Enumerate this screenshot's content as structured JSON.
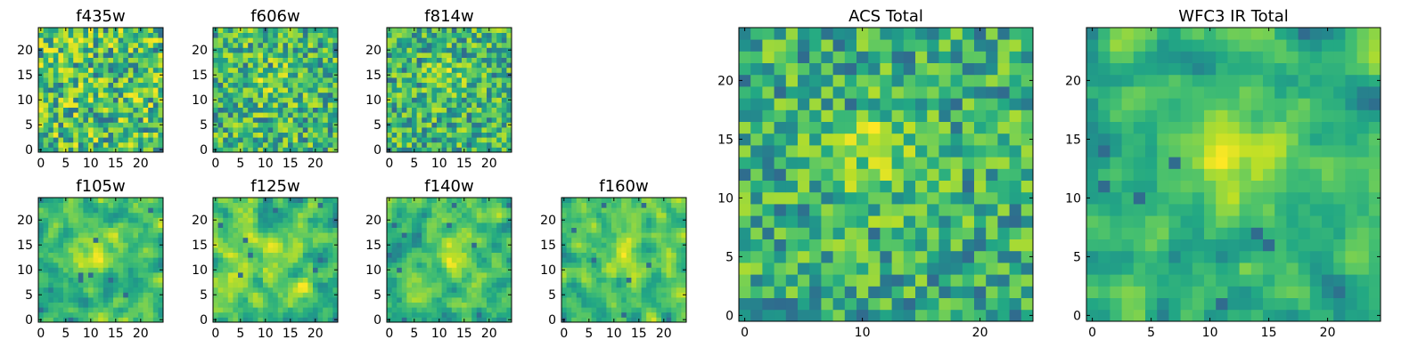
{
  "chart_data": [
    {
      "type": "heatmap",
      "title": "f435w",
      "grid_size": 25,
      "colormap": "viridis",
      "xticks": [
        0,
        5,
        10,
        15,
        20
      ],
      "yticks": [
        0,
        5,
        10,
        15,
        20
      ],
      "xlim": [
        -0.5,
        24.5
      ],
      "ylim": [
        -0.5,
        24.5
      ],
      "pattern": "noise",
      "seed": 11,
      "peak": [
        12,
        12,
        0.0
      ]
    },
    {
      "type": "heatmap",
      "title": "f606w",
      "grid_size": 25,
      "colormap": "viridis",
      "xticks": [
        0,
        5,
        10,
        15,
        20
      ],
      "yticks": [
        0,
        5,
        10,
        15,
        20
      ],
      "xlim": [
        -0.5,
        24.5
      ],
      "ylim": [
        -0.5,
        24.5
      ],
      "pattern": "noise",
      "seed": 23,
      "peak": [
        11,
        14,
        0.25
      ]
    },
    {
      "type": "heatmap",
      "title": "f814w",
      "grid_size": 25,
      "colormap": "viridis",
      "xticks": [
        0,
        5,
        10,
        15,
        20
      ],
      "yticks": [
        0,
        5,
        10,
        15,
        20
      ],
      "xlim": [
        -0.5,
        24.5
      ],
      "ylim": [
        -0.5,
        24.5
      ],
      "pattern": "noise",
      "seed": 37,
      "peak": [
        11,
        15,
        0.25
      ]
    },
    {
      "type": "heatmap",
      "title": "f105w",
      "grid_size": 25,
      "colormap": "viridis",
      "xticks": [
        0,
        5,
        10,
        15,
        20
      ],
      "yticks": [
        0,
        5,
        10,
        15,
        20
      ],
      "xlim": [
        -0.5,
        24.5
      ],
      "ylim": [
        -0.5,
        24.5
      ],
      "pattern": "smooth",
      "seed": 41,
      "peak": [
        11,
        14,
        0.35
      ]
    },
    {
      "type": "heatmap",
      "title": "f125w",
      "grid_size": 25,
      "colormap": "viridis",
      "xticks": [
        0,
        5,
        10,
        15,
        20
      ],
      "yticks": [
        0,
        5,
        10,
        15,
        20
      ],
      "xlim": [
        -0.5,
        24.5
      ],
      "ylim": [
        -0.5,
        24.5
      ],
      "pattern": "smooth",
      "seed": 53,
      "peak": [
        12,
        12,
        0.1
      ]
    },
    {
      "type": "heatmap",
      "title": "f140w",
      "grid_size": 25,
      "colormap": "viridis",
      "xticks": [
        0,
        5,
        10,
        15,
        20
      ],
      "yticks": [
        0,
        5,
        10,
        15,
        20
      ],
      "xlim": [
        -0.5,
        24.5
      ],
      "ylim": [
        -0.5,
        24.5
      ],
      "pattern": "smooth",
      "seed": 67,
      "peak": [
        13,
        14,
        0.25
      ]
    },
    {
      "type": "heatmap",
      "title": "f160w",
      "grid_size": 25,
      "colormap": "viridis",
      "xticks": [
        0,
        5,
        10,
        15,
        20
      ],
      "yticks": [
        0,
        5,
        10,
        15,
        20
      ],
      "xlim": [
        -0.5,
        24.5
      ],
      "ylim": [
        -0.5,
        24.5
      ],
      "pattern": "smooth",
      "seed": 79,
      "peak": [
        12,
        13,
        0.25
      ]
    },
    {
      "type": "heatmap",
      "title": "ACS Total",
      "grid_size": 25,
      "colormap": "viridis",
      "xticks": [
        0,
        10,
        20
      ],
      "yticks": [
        0,
        5,
        10,
        15,
        20
      ],
      "xlim": [
        -0.5,
        24.5
      ],
      "ylim": [
        -0.5,
        24.5
      ],
      "pattern": "noise",
      "seed": 97,
      "peak": [
        11,
        14,
        0.4
      ]
    },
    {
      "type": "heatmap",
      "title": "WFC3 IR Total",
      "grid_size": 25,
      "colormap": "viridis",
      "xticks": [
        0,
        5,
        10,
        15,
        20
      ],
      "yticks": [
        0,
        5,
        10,
        15,
        20
      ],
      "xlim": [
        -0.5,
        24.5
      ],
      "ylim": [
        -0.5,
        24.5
      ],
      "pattern": "smooth",
      "seed": 113,
      "peak": [
        12,
        14,
        0.35
      ]
    }
  ]
}
